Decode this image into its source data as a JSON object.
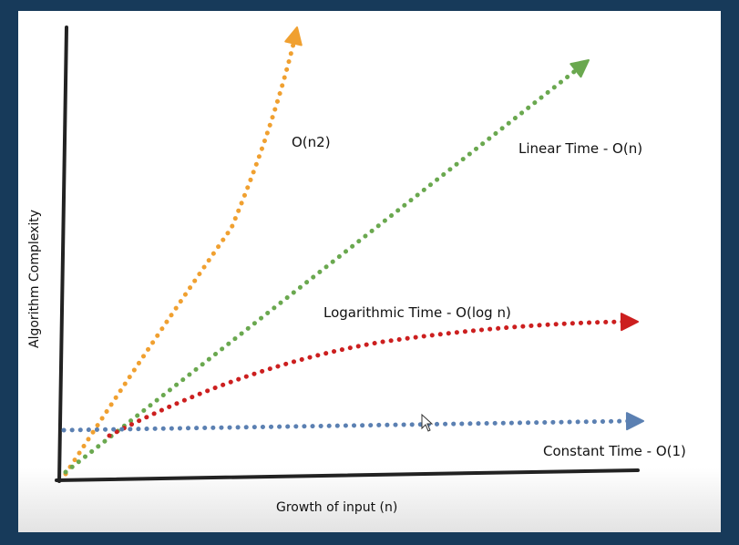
{
  "chart_data": {
    "type": "line",
    "xlabel": "Growth of input (n)",
    "ylabel": "Algorithm Complexity",
    "grid": false,
    "legend": "none",
    "series": [
      {
        "key": "n2",
        "name": "O(n2)",
        "color": "#f0a030"
      },
      {
        "key": "linear",
        "name": "Linear Time - O(n)",
        "color": "#6aa84f"
      },
      {
        "key": "log",
        "name": "Logarithmic Time - O(log n)",
        "color": "#cc1f1f"
      },
      {
        "key": "constant",
        "name": "Constant Time - O(1)",
        "color": "#5b80b2"
      }
    ]
  },
  "cursor": {
    "icon": "pointer-arrow-icon"
  }
}
